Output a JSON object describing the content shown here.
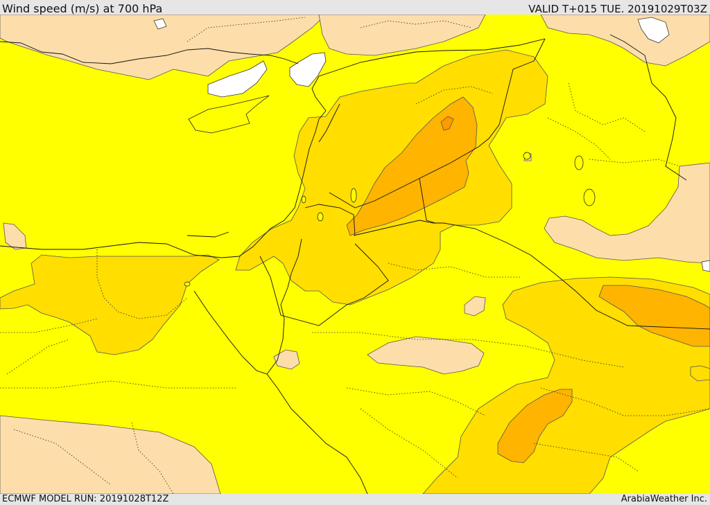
{
  "header": {
    "title": "Wind speed (m/s) at 700 hPa",
    "valid_time": "VALID T+015 TUE. 20191029T03Z"
  },
  "footer": {
    "model_run": "ECMWF MODEL RUN: 20191028T12Z",
    "credit": "ArabiaWeather Inc."
  },
  "map": {
    "colors": {
      "land_base": "#ffff00",
      "band_low": "#fddeaa",
      "band_mid": "#ffde00",
      "band_high": "#ffb400",
      "band_peak": "#ff9a00",
      "no_data": "#ffffff",
      "border_line": "#000000"
    }
  }
}
